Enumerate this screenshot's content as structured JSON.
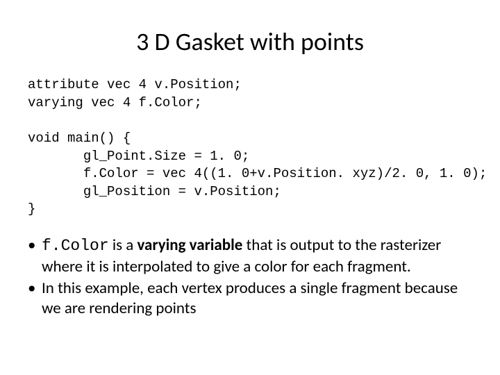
{
  "title": "3 D Gasket with points",
  "code": {
    "l1": "attribute vec 4 v.Position;",
    "l2": "varying vec 4 f.Color;",
    "l3": "",
    "l4": "void main() {",
    "l5": "       gl_Point.Size = 1. 0;",
    "l6": "       f.Color = vec 4((1. 0+v.Position. xyz)/2. 0, 1. 0);",
    "l7": "       gl_Position = v.Position;",
    "l8": "}"
  },
  "bullets": {
    "dot": "•",
    "b1": {
      "mono": "f.Color",
      "mid1": " is a ",
      "bold": "varying variable",
      "rest": " that is output to the rasterizer where it is interpolated to give a color for each fragment."
    },
    "b2": "In this example, each vertex produces a single fragment because we are rendering points"
  },
  "style": {
    "background_color": "#ffffff",
    "text_color": "#000000",
    "title_fontsize": 36,
    "code_fontsize": 19,
    "body_fontsize": 23,
    "code_font": "Courier New",
    "body_font": "Calibri"
  }
}
